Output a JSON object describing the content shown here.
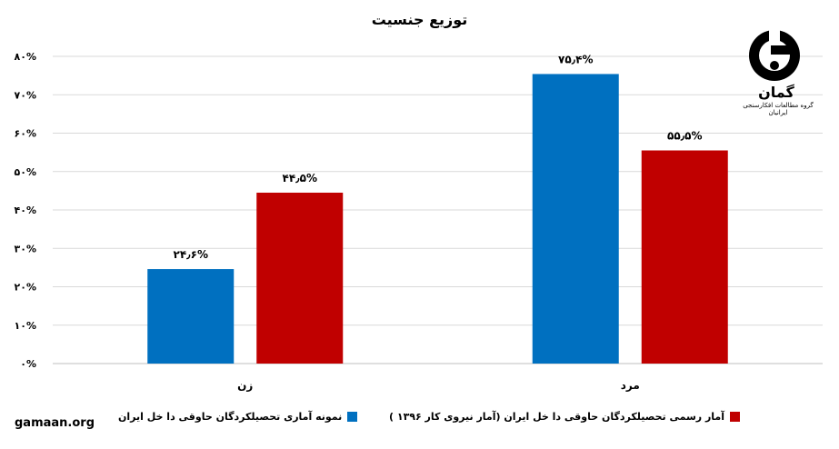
{
  "chart_data": {
    "type": "bar",
    "title": "توزیع جنسیت",
    "categories": [
      "زن",
      "مرد"
    ],
    "series": [
      {
        "name": "نمونه آماری تحصیلکردگان  حاوقی دا خل ایران",
        "color": "#0070C0",
        "values": [
          24.6,
          75.4
        ],
        "labels": [
          "۲۴٫۶%",
          "۷۵٫۴%"
        ]
      },
      {
        "name": "آمار رسمی تحصیلکردگان  حاوقی دا خل ایران  (آمار نیروی کار ۱۳۹۶ )",
        "color": "#C00000",
        "values": [
          44.5,
          55.5
        ],
        "labels": [
          "۴۴٫۵%",
          "۵۵٫۵%"
        ]
      }
    ],
    "ylim": [
      0,
      80
    ],
    "yticks": [
      0,
      10,
      20,
      30,
      40,
      50,
      60,
      70,
      80
    ],
    "ytick_labels": [
      "۰%",
      "۱۰%",
      "۲۰%",
      "۳۰%",
      "۴۰%",
      "۵۰%",
      "۶۰%",
      "۷۰%",
      "۸۰%"
    ],
    "grid": true,
    "legend": "bottom"
  },
  "watermark": "gamaan.org",
  "logo": {
    "name": "گمان",
    "subtitle": "گروه مطالعات افکارسنجی ایرانیان"
  }
}
